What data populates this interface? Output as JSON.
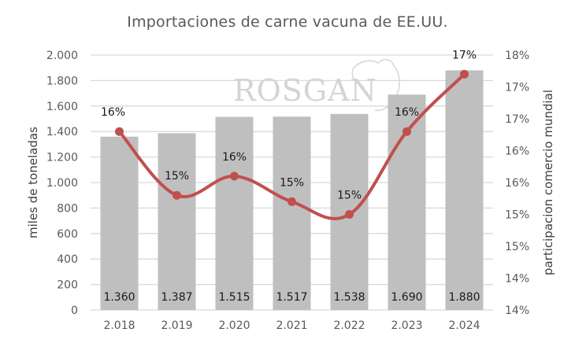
{
  "chart_data": {
    "type": "bar+line",
    "title": "Importaciones de carne vacuna de EE.UU.",
    "categories": [
      "2.018",
      "2.019",
      "2.020",
      "2.021",
      "2.022",
      "2.023",
      "2.024"
    ],
    "series": [
      {
        "name": "miles de toneladas",
        "type": "bar",
        "axis": "left",
        "color": "#bfbfbf",
        "values": [
          1360,
          1387,
          1515,
          1517,
          1538,
          1690,
          1880
        ],
        "labels": [
          "1.360",
          "1.387",
          "1.515",
          "1.517",
          "1.538",
          "1.690",
          "1.880"
        ]
      },
      {
        "name": "participacion comercio mundial",
        "type": "line",
        "axis": "right",
        "color": "#c0504d",
        "values": [
          16.4,
          15.4,
          15.7,
          15.3,
          15.1,
          16.4,
          17.3
        ],
        "labels": [
          "16%",
          "15%",
          "16%",
          "15%",
          "15%",
          "16%",
          "17%"
        ]
      }
    ],
    "ylabel": "miles de toneladas",
    "ylabel_right": "participacion  comercio mundial",
    "ylim": [
      0,
      2000
    ],
    "ylim_right": [
      13.6,
      17.6
    ],
    "yticks": [
      "0",
      "200",
      "400",
      "600",
      "800",
      "1.000",
      "1.200",
      "1.400",
      "1.600",
      "1.800",
      "2.000"
    ],
    "yticks_right": [
      "14%",
      "14%",
      "15%",
      "15%",
      "16%",
      "16%",
      "17%",
      "17%",
      "18%"
    ],
    "grid": true,
    "watermark": "ROSGAN"
  }
}
